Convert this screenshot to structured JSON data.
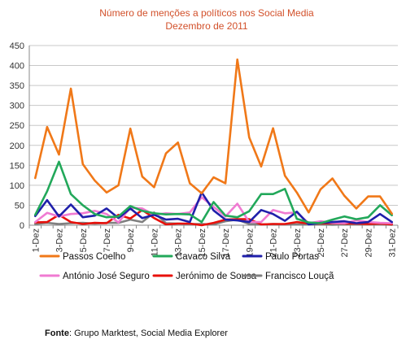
{
  "chart_data": {
    "type": "line",
    "title": "Número de menções a políticos nos Social Media",
    "subtitle": "Dezembro de 2011",
    "xlabel": "",
    "ylabel": "",
    "ylim": [
      0,
      450
    ],
    "yticks": [
      0,
      50,
      100,
      150,
      200,
      250,
      300,
      350,
      400,
      450
    ],
    "grid": true,
    "legend_position": "bottom",
    "x": [
      "1-Dez",
      "2-Dez",
      "3-Dez",
      "4-Dez",
      "5-Dez",
      "6-Dez",
      "7-Dez",
      "8-Dez",
      "9-Dez",
      "10-Dez",
      "11-Dez",
      "12-Dez",
      "13-Dez",
      "14-Dez",
      "15-Dez",
      "16-Dez",
      "17-Dez",
      "18-Dez",
      "19-Dez",
      "20-Dez",
      "21-Dez",
      "22-Dez",
      "23-Dez",
      "24-Dez",
      "25-Dez",
      "26-Dez",
      "27-Dez",
      "28-Dez",
      "29-Dez",
      "30-Dez",
      "31-Dez"
    ],
    "xtick_labels": [
      "1-Dez",
      "3-Dez",
      "5-Dez",
      "7-Dez",
      "9-Dez",
      "11-Dez",
      "13-Dez",
      "15-Dez",
      "17-Dez",
      "19-Dez",
      "21-Dez",
      "23-Dez",
      "25-Dez",
      "27-Dez",
      "29-Dez",
      "31-Dez"
    ],
    "series": [
      {
        "name": "Passos Coelho",
        "color": "#f07818",
        "values": [
          118,
          246,
          177,
          342,
          153,
          112,
          82,
          100,
          242,
          122,
          95,
          180,
          207,
          105,
          80,
          120,
          105,
          415,
          220,
          147,
          243,
          124,
          82,
          32,
          90,
          117,
          74,
          42,
          72,
          72,
          29
        ]
      },
      {
        "name": "Cavaco Silva",
        "color": "#22a85a",
        "values": [
          26,
          85,
          159,
          78,
          50,
          28,
          20,
          22,
          48,
          36,
          30,
          27,
          28,
          27,
          8,
          58,
          24,
          20,
          35,
          78,
          78,
          91,
          16,
          7,
          5,
          14,
          22,
          15,
          20,
          50,
          25
        ]
      },
      {
        "name": "Paulo Portas",
        "color": "#1f1faa",
        "values": [
          23,
          63,
          22,
          52,
          20,
          24,
          42,
          18,
          42,
          18,
          26,
          14,
          16,
          8,
          82,
          37,
          14,
          12,
          8,
          38,
          28,
          11,
          34,
          2,
          6,
          8,
          10,
          5,
          8,
          28,
          8
        ]
      },
      {
        "name": "António José Seguro",
        "color": "#f07ad2",
        "values": [
          8,
          31,
          22,
          28,
          30,
          36,
          28,
          7,
          44,
          42,
          26,
          30,
          28,
          32,
          70,
          46,
          22,
          54,
          8,
          8,
          38,
          30,
          32,
          5,
          10,
          6,
          5,
          12,
          8,
          6,
          5
        ]
      },
      {
        "name": "Jerónimo de Sousa",
        "color": "#e8100a",
        "values": [
          7,
          8,
          26,
          8,
          3,
          6,
          5,
          26,
          17,
          38,
          18,
          2,
          4,
          4,
          0,
          6,
          14,
          15,
          15,
          2,
          3,
          3,
          8,
          4,
          4,
          5,
          4,
          4,
          3,
          4,
          2
        ]
      },
      {
        "name": "Francisco Louçã",
        "color": "#808080",
        "values": [
          3,
          6,
          3,
          5,
          6,
          4,
          6,
          6,
          14,
          8,
          32,
          5,
          4,
          3,
          3,
          2,
          10,
          14,
          3,
          2,
          3,
          2,
          2,
          2,
          2,
          1,
          2,
          3,
          2,
          2,
          1
        ]
      }
    ],
    "legend": [
      "Passos Coelho",
      "Cavaco Silva",
      "Paulo Portas",
      "António José Seguro",
      "Jerónimo de Sousa",
      "Francisco Louçã"
    ]
  },
  "source": {
    "label": "Fonte",
    "text": ": Grupo Marktest, Social Media Explorer"
  }
}
